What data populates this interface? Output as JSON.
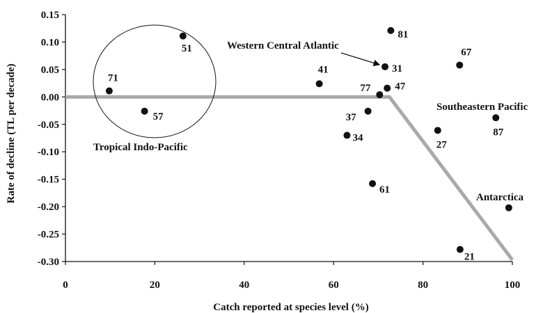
{
  "chart_data": {
    "type": "scatter",
    "title": "",
    "xlabel": "Catch reported at species level (%)",
    "ylabel": "Rate of decline (TL per decade)",
    "xlim": [
      0,
      100
    ],
    "ylim": [
      -0.3,
      0.15
    ],
    "x_ticks": [
      0,
      20,
      40,
      60,
      80,
      100
    ],
    "y_ticks": [
      0.15,
      0.1,
      0.05,
      0.0,
      -0.05,
      -0.1,
      -0.15,
      -0.2,
      -0.25,
      -0.3
    ],
    "x_tick_labels": [
      "0",
      "20",
      "40",
      "60",
      "80",
      "100"
    ],
    "y_tick_labels": [
      "0.15",
      "0.10",
      "0.05",
      "0.00",
      "-0.05",
      "-0.10",
      "-0.15",
      "-0.20",
      "-0.25",
      "-0.30"
    ],
    "grid": false,
    "points": [
      {
        "label": "71",
        "x": 9.8,
        "y": 0.011
      },
      {
        "label": "51",
        "x": 26.3,
        "y": 0.111
      },
      {
        "label": "57",
        "x": 17.7,
        "y": -0.026
      },
      {
        "label": "41",
        "x": 56.8,
        "y": 0.024
      },
      {
        "label": "37",
        "x": 67.7,
        "y": -0.026
      },
      {
        "label": "34",
        "x": 63.0,
        "y": -0.07
      },
      {
        "label": "61",
        "x": 68.7,
        "y": -0.158
      },
      {
        "label": "77",
        "x": 70.3,
        "y": 0.004
      },
      {
        "label": "47",
        "x": 72.0,
        "y": 0.016
      },
      {
        "label": "31",
        "x": 71.5,
        "y": 0.055
      },
      {
        "label": "81",
        "x": 72.8,
        "y": 0.121
      },
      {
        "label": "67",
        "x": 88.2,
        "y": 0.058
      },
      {
        "label": "27",
        "x": 83.3,
        "y": -0.061
      },
      {
        "label": "87",
        "x": 96.3,
        "y": -0.038
      },
      {
        "label": "21",
        "x": 88.3,
        "y": -0.278
      },
      {
        "label": "Antarctica",
        "x": 99.2,
        "y": -0.202
      }
    ],
    "trend_line": [
      {
        "x": 0,
        "y": 0.0
      },
      {
        "x": 72.5,
        "y": 0.0
      },
      {
        "x": 100,
        "y": -0.297
      }
    ],
    "annotations": {
      "tropical_indo_pacific": "Tropical Indo-Pacific",
      "western_central_atlantic": "Western Central Atlantic",
      "southeastern_pacific": "Southeastern Pacific",
      "antarctica": "Antarctica"
    },
    "colors": {
      "points": "#111111",
      "trend_line": "#a9a9a9",
      "axes": "#111111"
    }
  }
}
